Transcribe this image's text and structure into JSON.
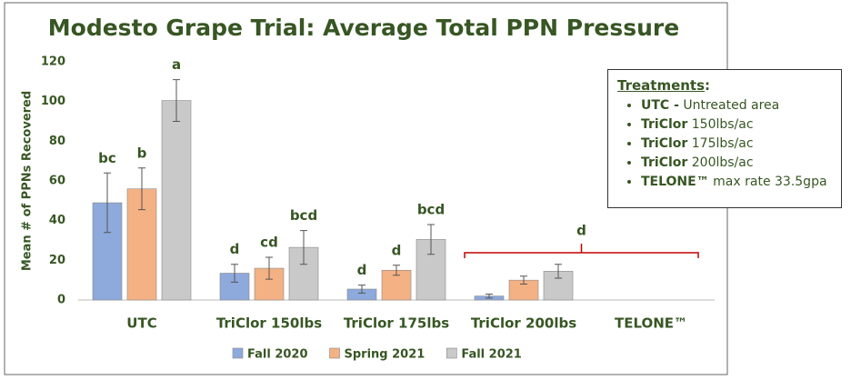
{
  "chart_data": {
    "type": "bar",
    "title": "Modesto Grape Trial: Average Total PPN Pressure",
    "ylabel": "Mean # of PPNs Recovered",
    "categories": [
      "UTC",
      "TriClor 150lbs",
      "TriClor 175lbs",
      "TriClor 200lbs",
      "TELONE™"
    ],
    "series": [
      {
        "name": "Fall 2020",
        "color": "#8ea9db",
        "values": [
          49,
          13.5,
          5.5,
          2,
          null
        ],
        "errors": [
          15,
          4.5,
          2,
          1,
          null
        ],
        "letters": [
          "bc",
          "d",
          "d",
          null,
          null
        ]
      },
      {
        "name": "Spring 2021",
        "color": "#f4b183",
        "values": [
          56,
          16,
          15,
          10,
          null
        ],
        "errors": [
          10.5,
          5.5,
          2.5,
          2,
          null
        ],
        "letters": [
          "b",
          "cd",
          "d",
          null,
          null
        ]
      },
      {
        "name": "Fall 2021",
        "color": "#c9c9c9",
        "values": [
          100.5,
          26.5,
          30.5,
          14.5,
          null
        ],
        "errors": [
          10.5,
          8.5,
          7.5,
          3.5,
          null
        ],
        "letters": [
          "a",
          "bcd",
          "bcd",
          null,
          null
        ]
      }
    ],
    "bracket_label": "d",
    "ylim": [
      0,
      120
    ],
    "yticks": [
      0,
      20,
      40,
      60,
      80,
      100,
      120
    ],
    "grid": false,
    "legend": "bottom"
  },
  "treatments": {
    "title": "Treatments",
    "colon": ":",
    "items": [
      {
        "bold": "UTC -",
        "text": "Untreated area"
      },
      {
        "bold": "TriClor",
        "text": "150lbs/ac"
      },
      {
        "bold": "TriClor",
        "text": "175lbs/ac"
      },
      {
        "bold": "TriClor",
        "text": "200lbs/ac"
      },
      {
        "bold": "TELONE™",
        "text": "max rate 33.5gpa"
      }
    ]
  }
}
